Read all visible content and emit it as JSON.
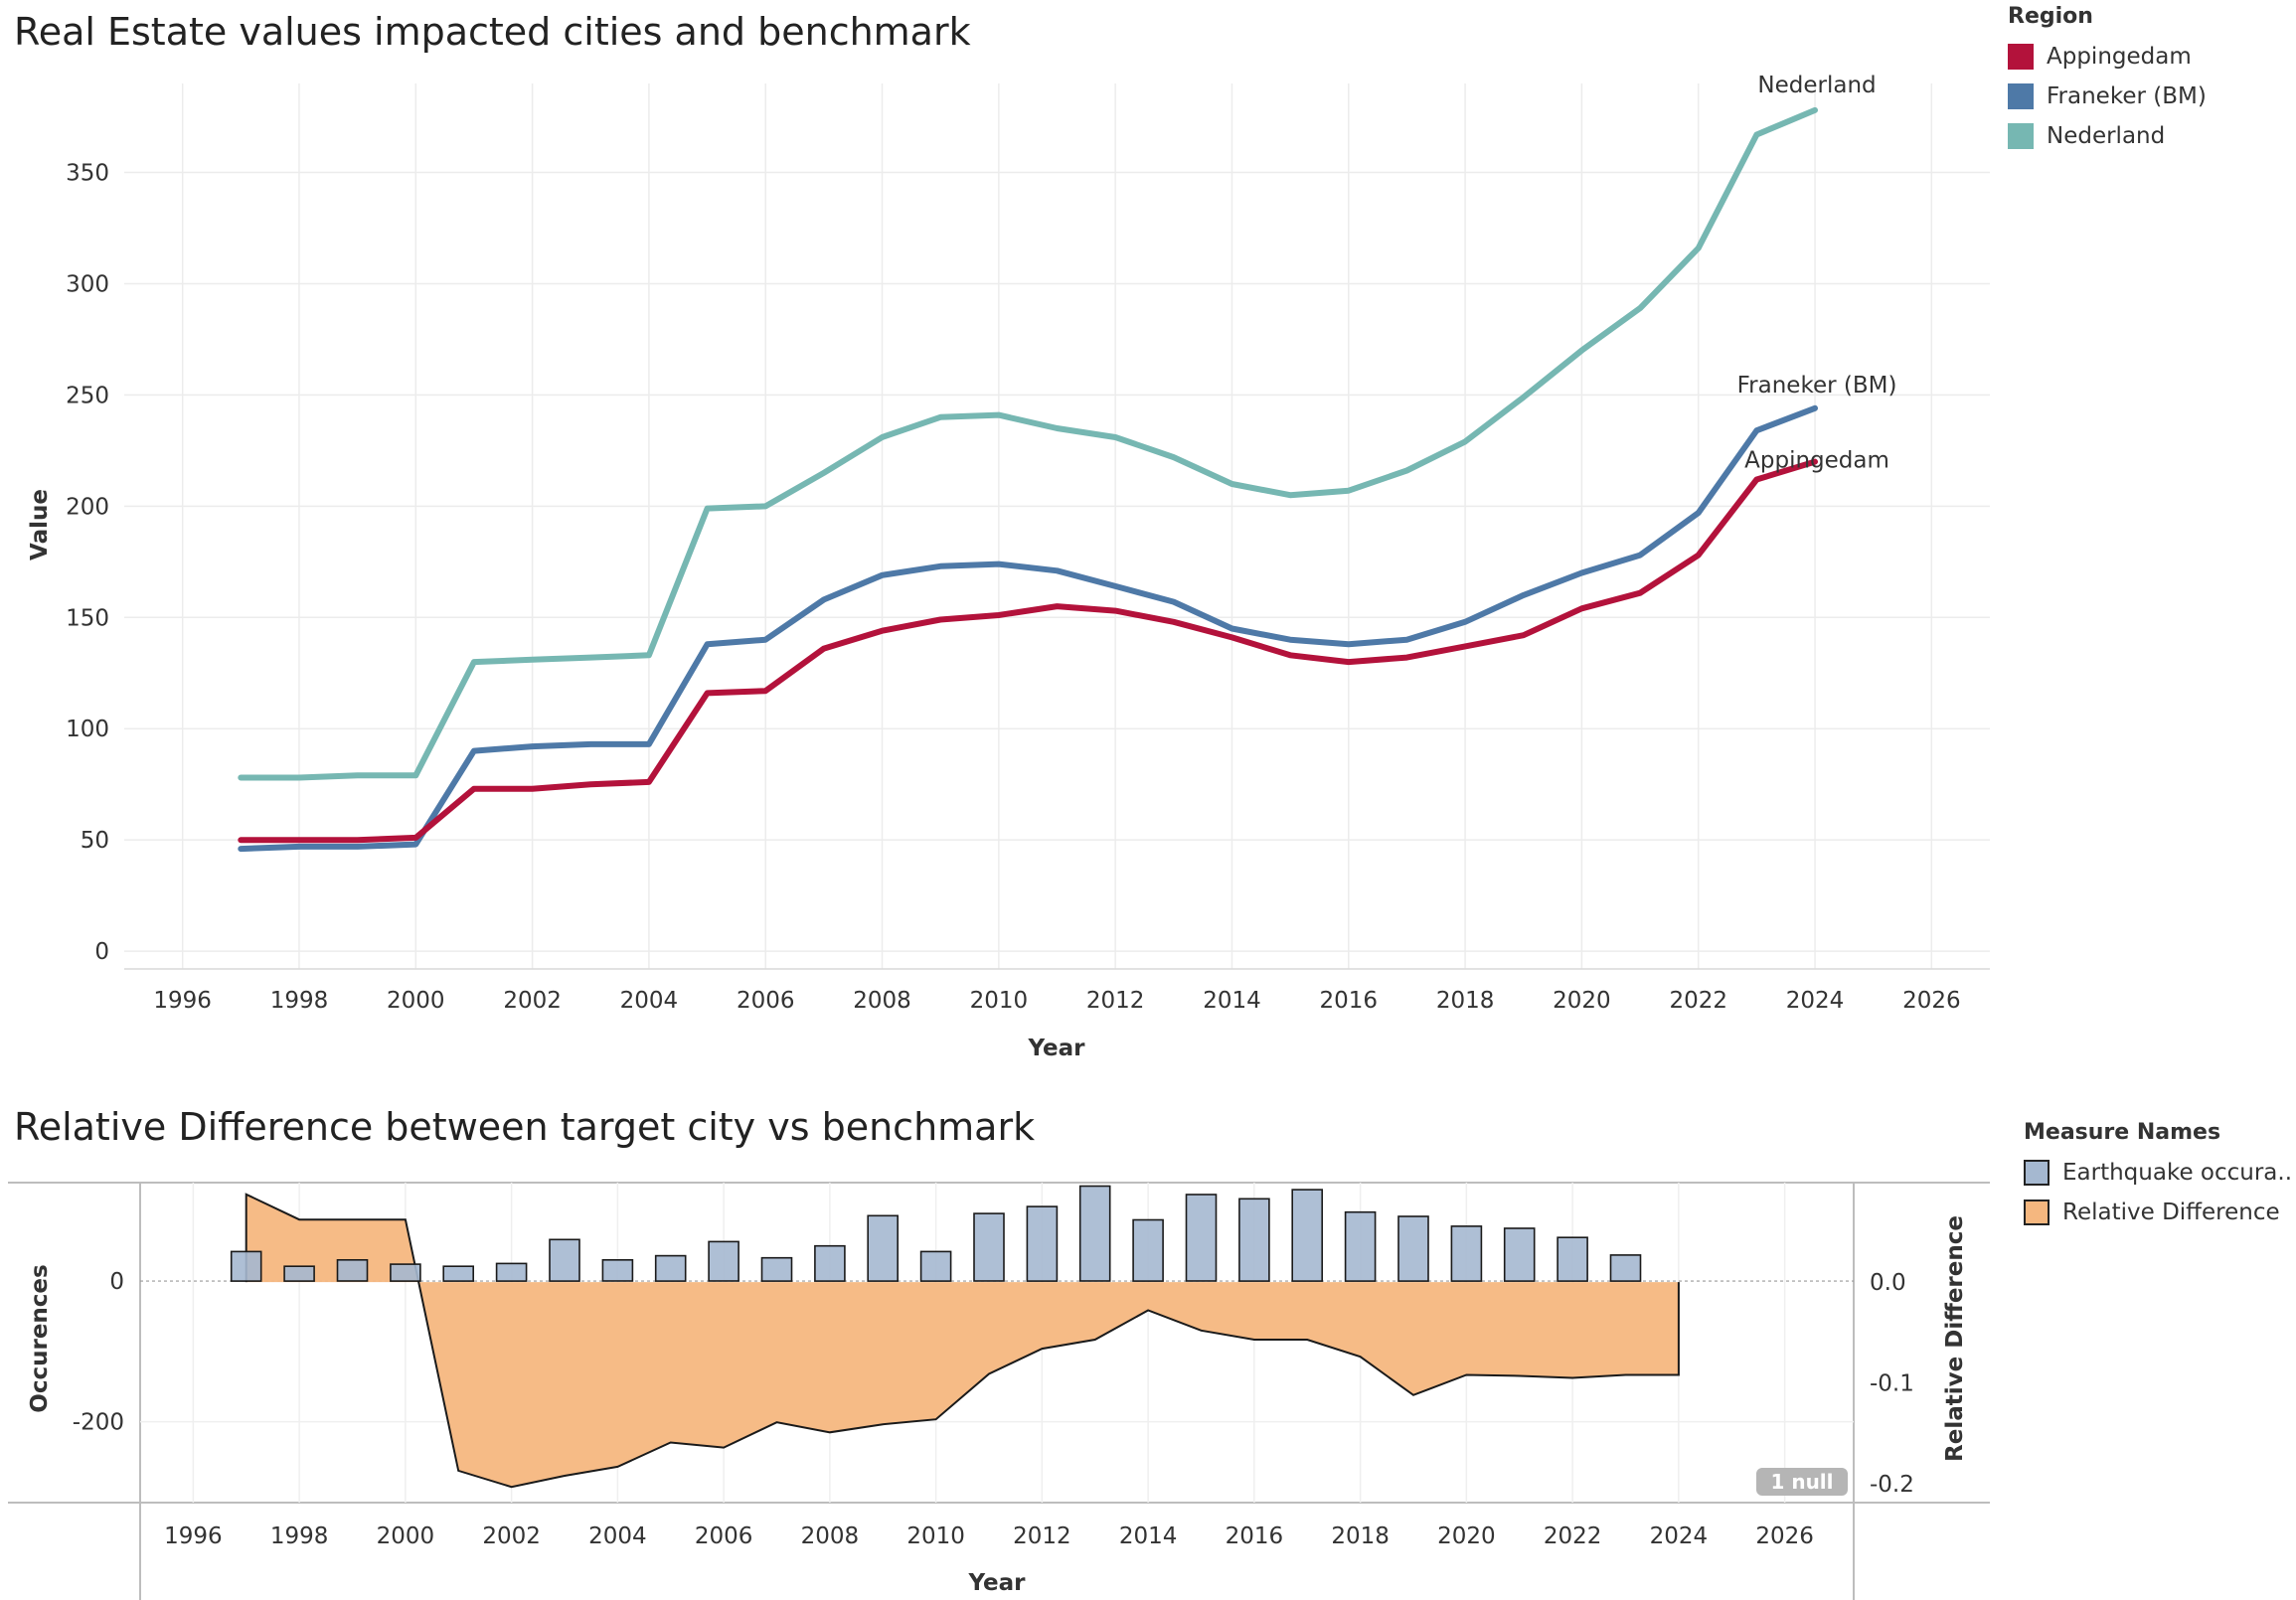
{
  "top": {
    "title": "Real Estate values impacted cities and benchmark",
    "legend": {
      "title": "Region",
      "items": [
        {
          "label": "Appingedam",
          "color": "#b3123b"
        },
        {
          "label": "Franeker (BM)",
          "color": "#4e79a7"
        },
        {
          "label": "Nederland",
          "color": "#76b7b2"
        }
      ]
    }
  },
  "bottom": {
    "title": "Relative Difference between target city vs benchmark",
    "legend": {
      "title": "Measure Names",
      "items": [
        {
          "label": "Earthquake occura..",
          "color": "#a5b8d0"
        },
        {
          "label": "Relative Difference",
          "color": "#f5b77f"
        }
      ]
    },
    "null_badge": "1 null"
  },
  "chart_data": [
    {
      "type": "line",
      "title": "Real Estate values impacted cities and benchmark",
      "xlabel": "Year",
      "ylabel": "Value",
      "xlim": [
        1995,
        2027
      ],
      "ylim": [
        -8,
        390
      ],
      "xticks": [
        1996,
        1998,
        2000,
        2002,
        2004,
        2006,
        2008,
        2010,
        2012,
        2014,
        2016,
        2018,
        2020,
        2022,
        2024,
        2026
      ],
      "yticks": [
        0,
        50,
        100,
        150,
        200,
        250,
        300,
        350
      ],
      "grid": true,
      "legend_position": "right",
      "x": [
        1997,
        1998,
        1999,
        2000,
        2001,
        2002,
        2003,
        2004,
        2005,
        2006,
        2007,
        2008,
        2009,
        2010,
        2011,
        2012,
        2013,
        2014,
        2015,
        2016,
        2017,
        2018,
        2019,
        2020,
        2021,
        2022,
        2023,
        2024
      ],
      "series": [
        {
          "name": "Nederland",
          "color": "#76b7b2",
          "end_label": "Nederland",
          "values": [
            78,
            78,
            79,
            79,
            130,
            131,
            132,
            133,
            199,
            200,
            215,
            231,
            240,
            241,
            235,
            231,
            222,
            210,
            205,
            207,
            216,
            229,
            249,
            270,
            289,
            316,
            367,
            378
          ]
        },
        {
          "name": "Franeker (BM)",
          "color": "#4e79a7",
          "end_label": "Franeker (BM)",
          "values": [
            46,
            47,
            47,
            48,
            90,
            92,
            93,
            93,
            138,
            140,
            158,
            169,
            173,
            174,
            171,
            164,
            157,
            145,
            140,
            138,
            140,
            148,
            160,
            170,
            178,
            197,
            234,
            244
          ]
        },
        {
          "name": "Appingedam",
          "color": "#b3123b",
          "end_label": "Appingedam",
          "values": [
            50,
            50,
            50,
            51,
            73,
            73,
            75,
            76,
            116,
            117,
            136,
            144,
            149,
            151,
            155,
            153,
            148,
            141,
            133,
            130,
            132,
            137,
            142,
            154,
            161,
            178,
            212,
            220
          ]
        }
      ]
    },
    {
      "type": "bar",
      "title": "Relative Difference between target city vs benchmark",
      "xlabel": "Year",
      "ylabel": "Occurences",
      "y2label": "Relative Difference",
      "xlim": [
        1995,
        2027.3
      ],
      "ylim": [
        -315,
        140
      ],
      "y2lim": [
        -0.2186,
        0.0986
      ],
      "xticks": [
        1996,
        1998,
        2000,
        2002,
        2004,
        2006,
        2008,
        2010,
        2012,
        2014,
        2016,
        2018,
        2020,
        2022,
        2024,
        2026
      ],
      "yticks": [
        0,
        -200
      ],
      "y2ticks": [
        0.0,
        -0.1,
        -0.2
      ],
      "y2tick_labels": [
        "0.0",
        "-0.1",
        "-0.2"
      ],
      "grid": true,
      "legend_position": "right",
      "series": [
        {
          "name": "Earthquake occura..",
          "type": "bar",
          "color": "#a5b8d0",
          "axis": "left",
          "x": [
            1997,
            1998,
            1999,
            2000,
            2001,
            2002,
            2003,
            2004,
            2005,
            2006,
            2007,
            2008,
            2009,
            2010,
            2011,
            2012,
            2013,
            2014,
            2015,
            2016,
            2017,
            2018,
            2019,
            2020,
            2021,
            2022,
            2023
          ],
          "values": [
            42,
            21,
            30,
            24,
            21,
            25,
            59,
            30,
            36,
            56,
            33,
            50,
            93,
            42,
            96,
            106,
            135,
            87,
            123,
            117,
            130,
            98,
            92,
            78,
            75,
            62,
            37
          ]
        },
        {
          "name": "Relative Difference",
          "type": "area",
          "color": "#f5b77f",
          "axis": "right",
          "x": [
            1997,
            1998,
            1999,
            2000,
            2001,
            2002,
            2003,
            2004,
            2005,
            2006,
            2007,
            2008,
            2009,
            2010,
            2011,
            2012,
            2013,
            2014,
            2015,
            2016,
            2017,
            2018,
            2019,
            2020,
            2021,
            2022,
            2023,
            2024
          ],
          "values": [
            0.087,
            0.062,
            0.062,
            0.062,
            -0.187,
            -0.203,
            -0.192,
            -0.183,
            -0.159,
            -0.164,
            -0.139,
            -0.149,
            -0.141,
            -0.136,
            -0.091,
            -0.066,
            -0.057,
            -0.028,
            -0.048,
            -0.057,
            -0.057,
            -0.074,
            -0.112,
            -0.092,
            -0.093,
            -0.095,
            -0.092,
            -0.092
          ]
        }
      ]
    }
  ]
}
